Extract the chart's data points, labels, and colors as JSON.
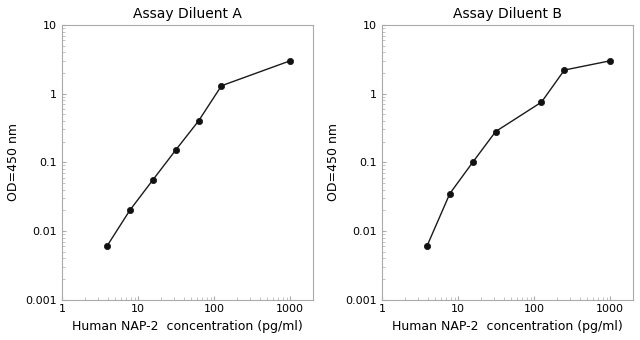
{
  "chart_A": {
    "title": "Assay Diluent A",
    "x": [
      3.9,
      7.8,
      15.6,
      31.2,
      62.5,
      125,
      1000
    ],
    "y": [
      0.006,
      0.02,
      0.055,
      0.15,
      0.4,
      1.3,
      3.0
    ],
    "xlabel": "Human NAP-2  concentration (pg/ml)",
    "ylabel": "OD=450 nm"
  },
  "chart_B": {
    "title": "Assay Diluent B",
    "x": [
      3.9,
      7.8,
      15.6,
      31.2,
      125,
      250,
      1000
    ],
    "y": [
      0.006,
      0.035,
      0.1,
      0.28,
      0.75,
      2.2,
      3.0
    ],
    "xlabel": "Human NAP-2  concentration (pg/ml)",
    "ylabel": "OD=450 nm"
  },
  "xlim": [
    1,
    2000
  ],
  "ylim": [
    0.001,
    10
  ],
  "xticks": [
    1,
    10,
    100,
    1000
  ],
  "yticks": [
    0.001,
    0.01,
    0.1,
    1,
    10
  ],
  "line_color": "#1a1a1a",
  "marker_color": "#111111",
  "bg_color": "#ffffff",
  "plot_bg_color": "#ffffff",
  "spine_color": "#aaaaaa",
  "title_fontsize": 10,
  "label_fontsize": 9,
  "tick_fontsize": 8
}
